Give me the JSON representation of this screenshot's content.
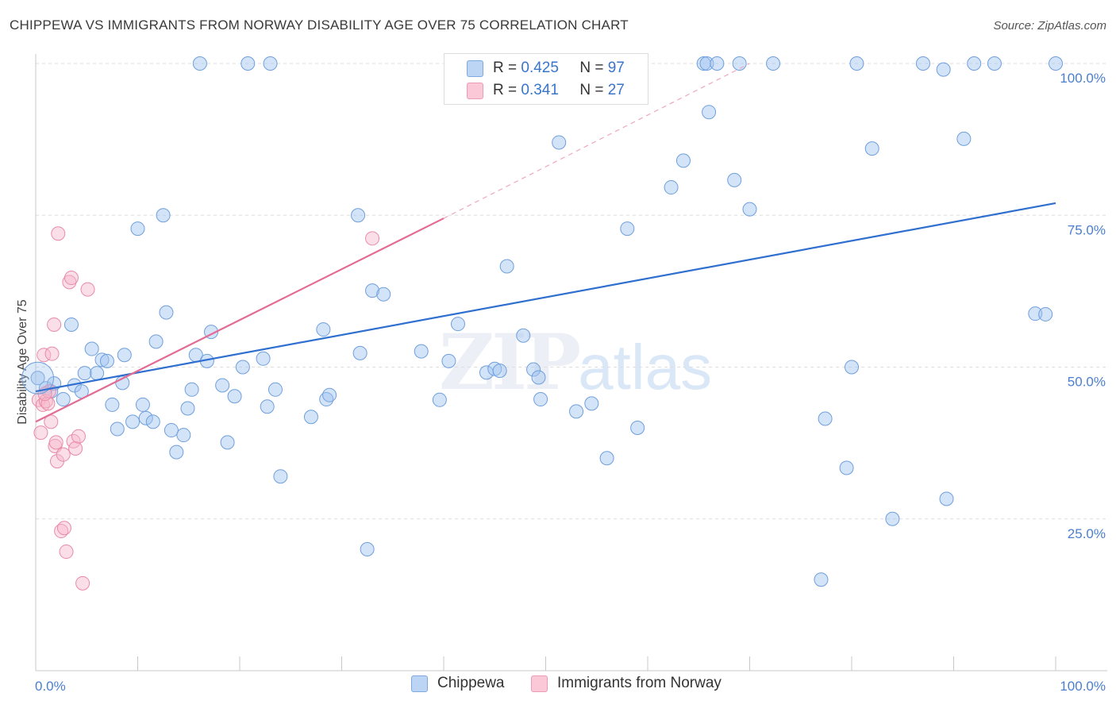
{
  "chart_data": {
    "type": "scatter",
    "title": "CHIPPEWA VS IMMIGRANTS FROM NORWAY DISABILITY AGE OVER 75 CORRELATION CHART",
    "source": "Source: ZipAtlas.com",
    "xlabel": "",
    "ylabel": "Disability Age Over 75",
    "xlim": [
      0,
      100
    ],
    "ylim": [
      0,
      100
    ],
    "x_tick_labels": [
      "0.0%",
      "100.0%"
    ],
    "y_ticks": [
      25,
      50,
      75,
      100
    ],
    "y_tick_labels": [
      "25.0%",
      "50.0%",
      "75.0%",
      "100.0%"
    ],
    "grid": true,
    "watermark": {
      "zip": "ZIP",
      "atlas": "atlas"
    },
    "legend": [
      {
        "name": "Chippewa",
        "r_label": "R = ",
        "r": "0.425",
        "n_label": "N = ",
        "n": "97",
        "color": "#9fc3ef",
        "stroke": "#6f9fdc"
      },
      {
        "name": "Immigrants from Norway",
        "r_label": "R = ",
        "r": "0.341",
        "n_label": "N = ",
        "n": "27",
        "color": "#f7b8cb",
        "stroke": "#e98aa8"
      }
    ],
    "series": [
      {
        "name": "Chippewa",
        "color": "#9fc3ef",
        "stroke": "#6f9fdc",
        "trend": {
          "x0": 0,
          "y0": 46,
          "x1": 100,
          "y1": 77,
          "color": "#2f6fcf"
        },
        "points": [
          [
            0.2,
            48.2
          ],
          [
            1.0,
            46.5
          ],
          [
            1.5,
            46.0
          ],
          [
            1.8,
            47.3
          ],
          [
            2.7,
            44.7
          ],
          [
            3.8,
            47.0
          ],
          [
            4.5,
            46.0
          ],
          [
            3.5,
            57.0
          ],
          [
            4.8,
            49.0
          ],
          [
            5.5,
            53.0
          ],
          [
            6.0,
            49.0
          ],
          [
            6.5,
            51.2
          ],
          [
            7.0,
            51.0
          ],
          [
            7.5,
            43.8
          ],
          [
            8.0,
            39.8
          ],
          [
            8.5,
            47.4
          ],
          [
            8.7,
            52.0
          ],
          [
            9.5,
            41.0
          ],
          [
            10.0,
            72.8
          ],
          [
            10.5,
            43.8
          ],
          [
            10.8,
            41.6
          ],
          [
            11.5,
            41.0
          ],
          [
            11.8,
            54.2
          ],
          [
            12.5,
            75.0
          ],
          [
            12.8,
            59.0
          ],
          [
            13.3,
            39.6
          ],
          [
            13.8,
            36.0
          ],
          [
            14.5,
            38.8
          ],
          [
            14.9,
            43.2
          ],
          [
            15.3,
            46.3
          ],
          [
            16.1,
            100.0
          ],
          [
            15.7,
            52.0
          ],
          [
            16.8,
            51.0
          ],
          [
            17.2,
            55.8
          ],
          [
            18.3,
            47.0
          ],
          [
            18.8,
            37.6
          ],
          [
            19.5,
            45.2
          ],
          [
            20.8,
            100.0
          ],
          [
            20.3,
            50.0
          ],
          [
            22.3,
            51.4
          ],
          [
            22.7,
            43.5
          ],
          [
            23.0,
            100.0
          ],
          [
            23.5,
            46.3
          ],
          [
            24.0,
            32.0
          ],
          [
            27.0,
            41.8
          ],
          [
            28.2,
            56.2
          ],
          [
            28.5,
            44.7
          ],
          [
            28.8,
            45.4
          ],
          [
            31.6,
            75.0
          ],
          [
            31.8,
            52.3
          ],
          [
            32.5,
            20.0
          ],
          [
            33.0,
            62.6
          ],
          [
            34.1,
            62.0
          ],
          [
            37.8,
            52.6
          ],
          [
            39.6,
            44.6
          ],
          [
            40.5,
            51.0
          ],
          [
            41.4,
            57.1
          ],
          [
            44.2,
            49.1
          ],
          [
            45.0,
            49.7
          ],
          [
            45.5,
            49.4
          ],
          [
            46.2,
            66.6
          ],
          [
            47.8,
            55.2
          ],
          [
            48.8,
            49.6
          ],
          [
            49.3,
            48.3
          ],
          [
            49.5,
            44.7
          ],
          [
            51.3,
            87.0
          ],
          [
            53.0,
            42.7
          ],
          [
            54.5,
            44.0
          ],
          [
            56.0,
            35.0
          ],
          [
            58.0,
            72.8
          ],
          [
            59.0,
            40.0
          ],
          [
            62.3,
            79.6
          ],
          [
            63.5,
            84.0
          ],
          [
            65.5,
            100.0
          ],
          [
            65.8,
            100.0
          ],
          [
            66.0,
            92.0
          ],
          [
            66.8,
            100.0
          ],
          [
            68.5,
            80.8
          ],
          [
            69.0,
            100.0
          ],
          [
            70.0,
            76.0
          ],
          [
            72.3,
            100.0
          ],
          [
            77.0,
            15.0
          ],
          [
            77.4,
            41.5
          ],
          [
            79.5,
            33.4
          ],
          [
            80.0,
            50.0
          ],
          [
            80.5,
            100.0
          ],
          [
            82.0,
            86.0
          ],
          [
            84.0,
            25.0
          ],
          [
            87.0,
            100.0
          ],
          [
            89.0,
            99.0
          ],
          [
            89.3,
            28.3
          ],
          [
            91.0,
            87.6
          ],
          [
            92.0,
            100.0
          ],
          [
            94.0,
            100.0
          ],
          [
            98.0,
            58.8
          ],
          [
            99.0,
            58.7
          ],
          [
            100.0,
            100.0
          ]
        ]
      },
      {
        "name": "Immigrants from Norway",
        "color": "#f7b8cb",
        "stroke": "#e98aa8",
        "trend": {
          "x0": 0,
          "y0": 41,
          "x1": 40,
          "y1": 74.5,
          "dash_to_x": 70,
          "dash_to_y": 100,
          "color": "#e36c96"
        },
        "points": [
          [
            0.3,
            44.6
          ],
          [
            0.5,
            39.2
          ],
          [
            0.7,
            43.8
          ],
          [
            0.8,
            52.0
          ],
          [
            1.0,
            44.4
          ],
          [
            1.2,
            44.0
          ],
          [
            1.3,
            46.0
          ],
          [
            1.5,
            41.0
          ],
          [
            1.6,
            52.2
          ],
          [
            1.8,
            57.0
          ],
          [
            1.9,
            37.0
          ],
          [
            2.0,
            37.6
          ],
          [
            2.1,
            34.5
          ],
          [
            2.2,
            72.0
          ],
          [
            2.5,
            23.0
          ],
          [
            2.7,
            35.6
          ],
          [
            2.8,
            23.5
          ],
          [
            3.0,
            19.6
          ],
          [
            3.3,
            64.0
          ],
          [
            3.5,
            64.7
          ],
          [
            3.7,
            37.8
          ],
          [
            3.9,
            36.6
          ],
          [
            4.2,
            38.6
          ],
          [
            4.6,
            14.4
          ],
          [
            5.1,
            62.8
          ],
          [
            33.0,
            71.2
          ],
          [
            0.9,
            45.6
          ]
        ]
      }
    ]
  }
}
